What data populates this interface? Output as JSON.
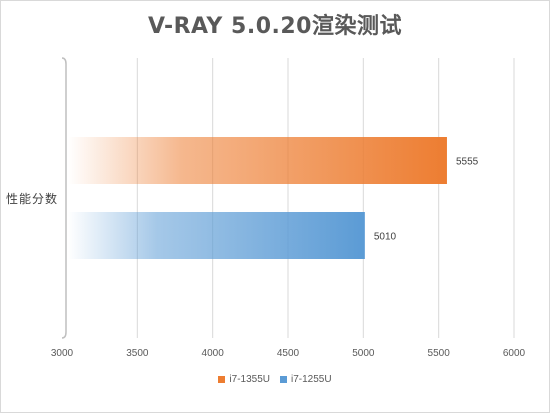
{
  "chart_data": {
    "type": "bar",
    "orientation": "horizontal",
    "title": "V-RAY 5.0.20渲染测试",
    "category_label": "性能分数",
    "xlim": [
      3000,
      6000
    ],
    "xticks": [
      "3000",
      "3500",
      "4000",
      "4500",
      "5000",
      "5500",
      "6000"
    ],
    "grid": "vertical",
    "legend_position": "bottom",
    "series": [
      {
        "name": "i7-1355U",
        "value": 5555,
        "label": "5555",
        "color": "#ed7d31"
      },
      {
        "name": "i7-1255U",
        "value": 5010,
        "label": "5010",
        "color": "#5b9bd5"
      }
    ]
  }
}
